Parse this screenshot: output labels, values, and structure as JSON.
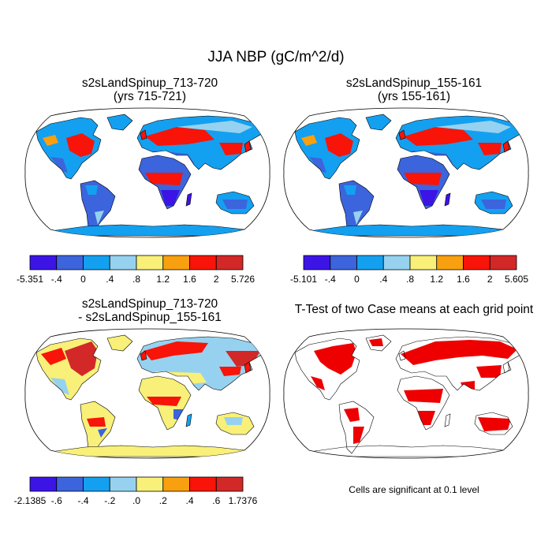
{
  "title": "JJA NBP (gC/m^2/d)",
  "colors": {
    "palette": [
      "#3c14e6",
      "#3c64dc",
      "#14a0f0",
      "#96d2f0",
      "#f8f078",
      "#f8a010",
      "#f81408",
      "#d22828"
    ],
    "ocean": "#ffffff",
    "significant": "#ee0000",
    "coast": "#000000"
  },
  "panels": [
    {
      "title_line1": "s2sLandSpinup_713-720",
      "title_line2": "(yrs 715-721)",
      "colorbar_labels": [
        "-5.351",
        "-.4",
        "0",
        ".4",
        ".8",
        "1.2",
        "1.6",
        "2",
        "5.726"
      ]
    },
    {
      "title_line1": "s2sLandSpinup_155-161",
      "title_line2": "(yrs 155-161)",
      "colorbar_labels": [
        "-5.101",
        "-.4",
        "0",
        ".4",
        ".8",
        "1.2",
        "1.6",
        "2",
        "5.605"
      ]
    },
    {
      "title_line1": "s2sLandSpinup_713-720",
      "title_line2": "- s2sLandSpinup_155-161",
      "colorbar_labels": [
        "-2.1385",
        "-.6",
        "-.4",
        "-.2",
        ".0",
        ".2",
        ".4",
        ".6",
        "1.7376"
      ]
    },
    {
      "title_line1": "T-Test of two Case means at each grid point",
      "note": "Cells are significant at 0.1 level"
    }
  ],
  "chart_data": [
    {
      "type": "heatmap",
      "projection": "robinson",
      "title": "s2sLandSpinup_713-720 (yrs 715-721)",
      "levels": [
        "-5.351",
        "-.4",
        "0",
        ".4",
        ".8",
        "1.2",
        "1.6",
        "2",
        "5.726"
      ],
      "vmin": -5.351,
      "vmax": 5.726,
      "regions": [
        {
          "name": "North America boreal/east US",
          "class": 6
        },
        {
          "name": "Alaska / N Canada",
          "class": 2
        },
        {
          "name": "Mexico / Central America",
          "class": 1
        },
        {
          "name": "South America (Amazon)",
          "class": 1
        },
        {
          "name": "Europe / W Russia",
          "class": 6
        },
        {
          "name": "Siberia",
          "class": 2
        },
        {
          "name": "East Asia",
          "class": 6
        },
        {
          "name": "Sahara / Arabia",
          "class": 1
        },
        {
          "name": "Sahel / Central Africa",
          "class": 6
        },
        {
          "name": "Southern Africa",
          "class": 0
        },
        {
          "name": "South Asia",
          "class": 2
        },
        {
          "name": "Australia",
          "class": 2
        },
        {
          "name": "Antarctica",
          "class": 2
        }
      ]
    },
    {
      "type": "heatmap",
      "projection": "robinson",
      "title": "s2sLandSpinup_155-161 (yrs 155-161)",
      "levels": [
        "-5.101",
        "-.4",
        "0",
        ".4",
        ".8",
        "1.2",
        "1.6",
        "2",
        "5.605"
      ],
      "vmin": -5.101,
      "vmax": 5.605,
      "regions": [
        {
          "name": "North America boreal/east US",
          "class": 6
        },
        {
          "name": "Alaska / N Canada",
          "class": 2
        },
        {
          "name": "Mexico / Central America",
          "class": 1
        },
        {
          "name": "South America (Amazon)",
          "class": 1
        },
        {
          "name": "Europe / W Russia",
          "class": 6
        },
        {
          "name": "Siberia",
          "class": 2
        },
        {
          "name": "East Asia",
          "class": 6
        },
        {
          "name": "Sahara / Arabia",
          "class": 1
        },
        {
          "name": "Sahel / Central Africa",
          "class": 6
        },
        {
          "name": "Southern Africa",
          "class": 0
        },
        {
          "name": "South Asia",
          "class": 2
        },
        {
          "name": "Australia",
          "class": 2
        },
        {
          "name": "Antarctica",
          "class": 2
        }
      ]
    },
    {
      "type": "heatmap",
      "projection": "robinson",
      "title": "s2sLandSpinup_713-720 - s2sLandSpinup_155-161",
      "levels": [
        "-2.1385",
        "-.6",
        "-.4",
        "-.2",
        ".0",
        ".2",
        ".4",
        ".6",
        "1.7376"
      ],
      "vmin": -2.1385,
      "vmax": 1.7376,
      "regions": [
        {
          "name": "North America boreal/east US",
          "class": 7
        },
        {
          "name": "Alaska / N Canada",
          "class": 4
        },
        {
          "name": "Mexico / Central America",
          "class": 3
        },
        {
          "name": "South America (Amazon)",
          "class": 4
        },
        {
          "name": "Europe / W Russia",
          "class": 6
        },
        {
          "name": "Siberia",
          "class": 3
        },
        {
          "name": "East Asia",
          "class": 4
        },
        {
          "name": "Sahara / Arabia",
          "class": 4
        },
        {
          "name": "Sahel / Central Africa",
          "class": 6
        },
        {
          "name": "Southern Africa",
          "class": 4
        },
        {
          "name": "South Asia",
          "class": 3
        },
        {
          "name": "Australia",
          "class": 4
        },
        {
          "name": "Antarctica",
          "class": 4
        }
      ]
    },
    {
      "type": "heatmap",
      "projection": "robinson",
      "title": "T-Test of two Case means at each grid point",
      "significance_level": 0.1,
      "regions": [
        {
          "name": "North America boreal/east US",
          "significant": true
        },
        {
          "name": "Alaska / N Canada",
          "significant": true
        },
        {
          "name": "South America",
          "significant": true
        },
        {
          "name": "Europe / W Russia",
          "significant": true
        },
        {
          "name": "Siberia",
          "significant": true
        },
        {
          "name": "Sahel / Central Africa",
          "significant": true
        },
        {
          "name": "Southern Africa",
          "significant": true
        },
        {
          "name": "South Asia",
          "significant": true
        },
        {
          "name": "Australia",
          "significant": true
        },
        {
          "name": "Antarctica",
          "significant": false
        }
      ]
    }
  ]
}
